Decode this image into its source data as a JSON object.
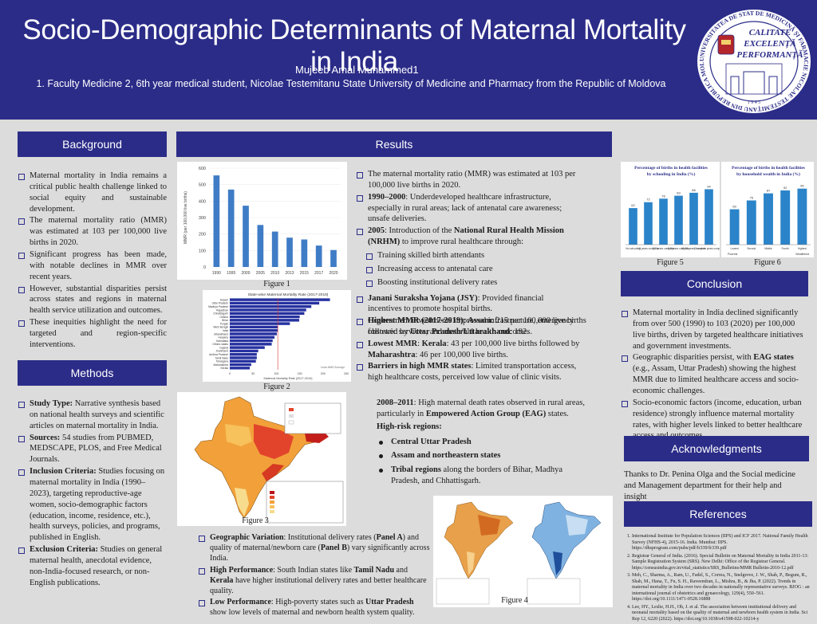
{
  "header": {
    "title": "Socio-Demographic Determinants of Maternal Mortality in India",
    "author": "Mujeeb Amal Muhammed1",
    "affiliation": "1. Faculty Medicine 2, 6th year medical student, Nicolae Testemitanu State University of Medicine and Pharmacy from the Republic of Moldova",
    "logo_text": [
      "CALITATE",
      "EXCELENȚĂ",
      "PERFORMANȚĂ"
    ],
    "logo_ring": "UNIVERSITATEA DE STAT DE MEDICINĂ ȘI FARMACIE NICOLAE TESTEMIȚANU DIN REPUBLICA MOLDOVA",
    "logo_year": "1 9 4 5"
  },
  "sections": {
    "background": "Background",
    "methods": "Methods",
    "results": "Results",
    "conclusion": "Conclusion",
    "acknowledgments": "Acknowledgments",
    "references": "References"
  },
  "background": [
    "Maternal mortality in India remains a critical public health challenge linked to social equity and sustainable development.",
    "The maternal mortality ratio (MMR) was estimated at 103 per 100,000 live births in 2020.",
    "Significant progress has been made, with notable declines in MMR over recent years.",
    "However, substantial disparities persist across states and regions in maternal health service utilization and outcomes.",
    "These inequities highlight the need for targeted and region-specific interventions."
  ],
  "methods": [
    {
      "label": "Study Type:",
      "text": " Narrative synthesis based on national health surveys and scientific articles on maternal mortality in India."
    },
    {
      "label": "Sources:",
      "text": " 54 studies from PUBMED, MEDSCAPE, PLOS, and Free Medical Journals."
    },
    {
      "label": "Inclusion Criteria:",
      "text": " Studies focusing on maternal mortality in India (1990–2023), targeting reproductive-age women, socio-demographic factors (education, income, residence, etc.), health surveys, policies, and programs, published in English."
    },
    {
      "label": "Exclusion Criteria:",
      "text": " Studies on general maternal health, anecdotal evidence, non-India-focused research, or non-English publications."
    }
  ],
  "results": {
    "p1": "The maternal mortality ratio (MMR) was estimated at 103 per 100,000 live births in 2020.",
    "p2_label": "1990–2000",
    "p2_text": ": Underdeveloped healthcare infrastructure, especially in rural areas; lack of antenatal care awareness; unsafe deliveries.",
    "p3_label": "2005",
    "p3_mid": ": Introduction of the ",
    "p3_bold": "National Rural Health Mission (NRHM)",
    "p3_end": " to improve rural healthcare through:",
    "p3_sub": [
      "Training skilled birth attendants",
      "Increasing access to antenatal care",
      "Boosting institutional delivery rates"
    ],
    "p4_label": "Janani Suraksha Yojana (JSY)",
    "p4_text": ": Provided financial incentives to promote hospital births.",
    "p5": "Government investments improved infrastructure, emergency obstetric services, and maternal health outcomes.",
    "highest_label": "Highest MMR (2017-2019)",
    "highest_mid": ": ",
    "highest_state": "Assam",
    "highest_mid2": ": 215 per 100,000 live births followed by ",
    "highest_state2": "Uttar Pradesh/Uttarakhand",
    "highest_end": ": 192.",
    "lowest_label": "Lowest MMR",
    "lowest_mid": ": ",
    "lowest_state": "Kerala",
    "lowest_mid2": ": 43 per 100,000 live births followed by ",
    "lowest_state2": "Maharashtra",
    "lowest_end": ": 46 per 100,000 live births.",
    "barriers_label": "Barriers in high MMR states",
    "barriers_text": ": Limited transportation access, high healthcare costs, perceived low value of clinic visits.",
    "eag_label": "2008–2011",
    "eag_text": ": High maternal death rates observed in rural areas, particularly in ",
    "eag_bold": "Empowered Action Group (EAG)",
    "eag_end": " states.",
    "risk_title": "High-risk regions",
    "risk_colon": ":",
    "risk_items": [
      "Central Uttar Pradesh",
      "Assam and northeastern states"
    ],
    "risk_last_bold": "Tribal regions",
    "risk_last_text": " along the borders of Bihar, Madhya Pradesh, and Chhattisgarh.",
    "geo_label": "Geographic Variation",
    "geo_text1": ": Institutional delivery rates (",
    "geo_panelA": "Panel A",
    "geo_text2": ") and quality of maternal/newborn care (",
    "geo_panelB": "Panel B",
    "geo_text3": ") vary significantly across India.",
    "high_label": "High Performance",
    "high_text1": ": South Indian states like ",
    "high_s1": "Tamil Nadu",
    "high_and": " and ",
    "high_s2": "Kerala",
    "high_text2": " have higher institutional delivery rates and better healthcare quality.",
    "low_label": "Low Performance",
    "low_text1": ": High-poverty states such as ",
    "low_state": "Uttar Pradesh",
    "low_text2": " show low levels of maternal and newborn health system quality."
  },
  "conclusion": {
    "c1": "Maternal mortality in India declined significantly from over 500 (1990) to 103 (2020) per 100,000 live births, driven by targeted healthcare initiatives and government investments.",
    "c2_a": "Geographic disparities persist, with ",
    "c2_bold": "EAG states",
    "c2_b": " (e.g., Assam, Uttar Pradesh) showing the highest MMR due to limited healthcare access and socio-economic challenges.",
    "c3": "Socio-economic factors (income, education, urban residence) strongly influence maternal mortality rates, with higher levels linked to better healthcare access and outcomes."
  },
  "acknowledgments": "Thanks to Dr. Penina Olga and the Social medicine and Management department for their help and insight",
  "references": [
    "International Institute for Population Sciences (IIPS) and ICF 2017. National Family Health Survey (NFHS-4), 2015-16. India. Mumbai: IIPS. https://dhsprogram.com/pubs/pdf/fr339/fr339.pdf",
    "Registrar General of India. (2016). Special Bulletin on Maternal Mortality in India 2011-13: Sample Registration System (SRS). New Delhi: Office of the Registrar General. https://censusindia.gov.in/vital_statistics/SRS_Bulletins/MMR Bulletin-2010-12.pdf",
    "Meh, C., Sharma, A., Ram, U., Fadel, S., Correa, N., Snelgrove, J. W., Shah, P., Begum, R., Shah, M., Hana, T., Fu, S. H., Raveendran, L., Mishra, B., & Jha, P. (2022). Trends in maternal mortality in India over two decades in nationally representative surveys. BJOG : an international journal of obstetrics and gynaecology, 129(4), 550–561. https://doi.org/10.1111/1471-0528.16888",
    "Lee, HY., Leslie, H.H., Oh, J. et al. The association between institutional delivery and neonatal mortality based on the quality of maternal and newborn health system in India. Sci Rep 12, 6220 (2022). https://doi.org/10.1038/s41598-022-10214-y"
  ],
  "figures": {
    "fig1": "Figure 1",
    "fig2": "Figure 2",
    "fig3": "Figure 3",
    "fig4": "Figure 4",
    "fig5": "Figure 5",
    "fig6": "Figure 6"
  },
  "chart_data": [
    {
      "type": "bar",
      "id": "figure1",
      "title": "",
      "xlabel": "",
      "ylabel": "MMR (per 100,000 live births)",
      "categories": [
        "1990",
        "1995",
        "2000",
        "2005",
        "2010",
        "2013",
        "2015",
        "2017",
        "2020"
      ],
      "values": [
        556,
        470,
        372,
        255,
        215,
        178,
        167,
        130,
        103
      ],
      "ylim": [
        0,
        600
      ],
      "yticks": [
        0,
        100,
        200,
        300,
        400,
        500,
        600
      ],
      "color": "#3f7cc6"
    },
    {
      "type": "bar",
      "orientation": "horizontal",
      "id": "figure2",
      "title": "State-wise Maternal Mortality Rate (2017-2019)",
      "xlabel": "Maternal Mortality Rate (2017-2019)",
      "categories": [
        "Assam",
        "Uttar Pradesh",
        "Madhya Pradesh",
        "Rajasthan",
        "Chhattisgarh",
        "Odisha",
        "Bihar",
        "Punjab",
        "West Bengal",
        "India",
        "Uttarakhand",
        "Haryana",
        "Karnataka",
        "Others states",
        "Gujarat",
        "Jharkhand",
        "Andhra Pradesh",
        "Tamil Nadu",
        "Telangana",
        "Maharashtra",
        "Kerala"
      ],
      "values": [
        215,
        192,
        175,
        164,
        160,
        150,
        149,
        129,
        103,
        103,
        101,
        96,
        92,
        90,
        75,
        61,
        58,
        58,
        56,
        46,
        43
      ],
      "xlim": [
        0,
        250
      ],
      "xticks": [
        0,
        50,
        100,
        150,
        200,
        250
      ],
      "legend": "India MMR Average",
      "color": "#2631a0"
    },
    {
      "type": "bar",
      "id": "figure5",
      "title": "Percentage of births in health facilities by schooling in India (%)",
      "categories": [
        "No schooling",
        "<5 years complete",
        "5-7 years complete",
        "8-9 years complete",
        "10-11 years complete",
        "12 or more years complete"
      ],
      "values": [
        62,
        72,
        78,
        83,
        88,
        94
      ],
      "ylim": [
        0,
        100
      ],
      "color": "#2b84c9"
    },
    {
      "type": "bar",
      "id": "figure6",
      "title": "Percentage of births in health facilities by household wealth in India (%)",
      "categories": [
        "Lowest",
        "Second",
        "Middle",
        "Fourth",
        "Highest"
      ],
      "values": [
        60,
        75,
        87,
        92,
        95
      ],
      "ylim": [
        0,
        100
      ],
      "axis_notes": [
        "Poorest",
        "Wealthiest"
      ],
      "color": "#2b84c9"
    }
  ]
}
